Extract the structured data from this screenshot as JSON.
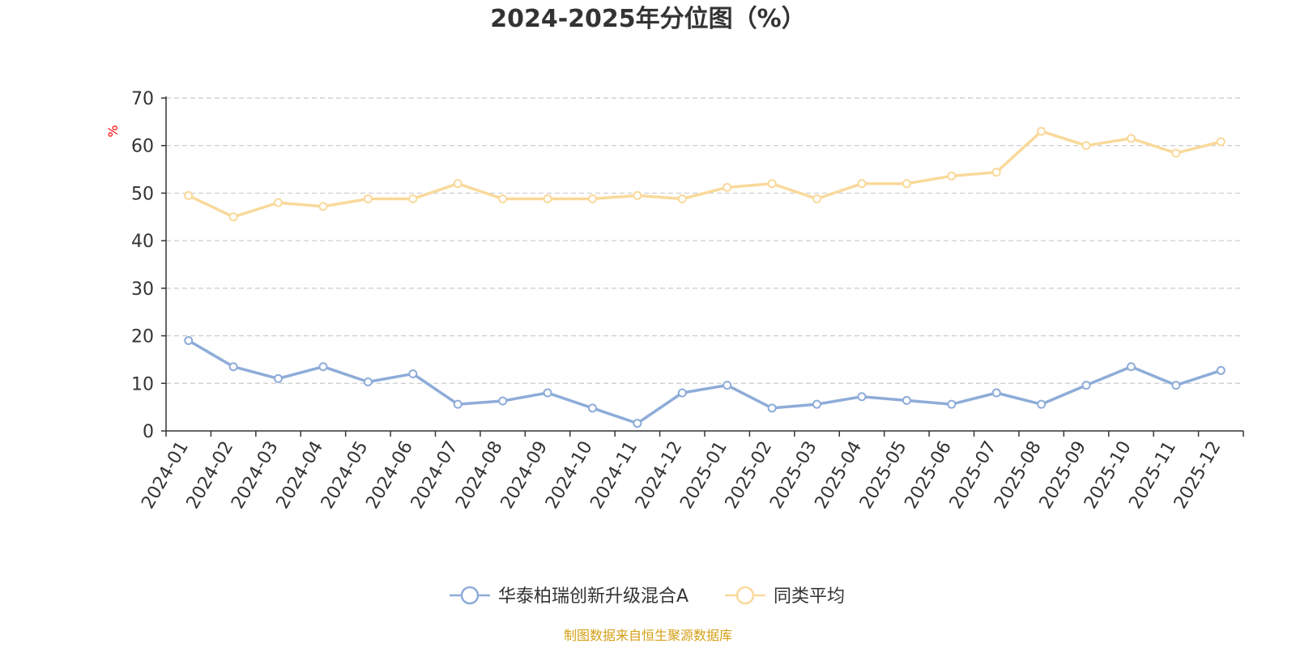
{
  "chart_data": {
    "type": "line",
    "title": "2024-2025年分位图（%）",
    "ylabel": "%",
    "xlabel": "",
    "ylim": [
      0,
      70
    ],
    "yticks": [
      0,
      10,
      20,
      30,
      40,
      50,
      60,
      70
    ],
    "grid": true,
    "legend": "bottom-center",
    "categories": [
      "2024-01",
      "2024-02",
      "2024-03",
      "2024-04",
      "2024-05",
      "2024-06",
      "2024-07",
      "2024-08",
      "2024-09",
      "2024-10",
      "2024-11",
      "2024-12",
      "2025-01",
      "2025-02",
      "2025-03",
      "2025-04",
      "2025-05",
      "2025-06",
      "2025-07",
      "2025-08",
      "2025-09",
      "2025-10",
      "2025-11",
      "2025-12"
    ],
    "series": [
      {
        "name": "华泰柏瑞创新升级混合A",
        "color": "#8eacd8",
        "values": [
          19.0,
          13.5,
          11.0,
          13.5,
          10.3,
          12.0,
          5.6,
          6.3,
          8.0,
          4.8,
          1.6,
          8.0,
          9.6,
          4.8,
          5.6,
          7.2,
          6.4,
          5.6,
          8.0,
          5.6,
          9.6,
          13.5,
          9.6,
          12.7
        ]
      },
      {
        "name": "同类平均",
        "color": "#f9d99b",
        "values": [
          49.5,
          45.0,
          48.0,
          47.2,
          48.8,
          48.8,
          52.0,
          48.8,
          48.8,
          48.8,
          49.5,
          48.8,
          51.2,
          52.0,
          48.8,
          52.0,
          52.0,
          53.6,
          54.4,
          63.0,
          60.0,
          61.5,
          58.4,
          60.8
        ]
      }
    ],
    "source": "制图数据来自恒生聚源数据库",
    "colors": {
      "axis": "#333333",
      "grid": "#cccccc",
      "unit": "#ff0000",
      "source": "#d4a017",
      "text": "#333333"
    }
  }
}
